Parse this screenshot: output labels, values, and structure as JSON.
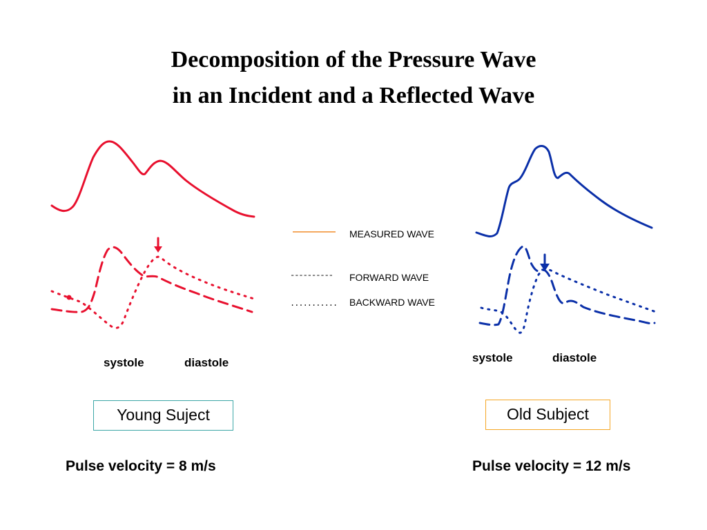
{
  "title": {
    "line1": "Decomposition of the Pressure Wave",
    "line2": "in an Incident and a Reflected Wave"
  },
  "legend": {
    "measured": {
      "sample": "",
      "label": "MEASURED WAVE",
      "color": "#f28c28"
    },
    "forward": {
      "sample": "----------",
      "label": "FORWARD WAVE"
    },
    "backward": {
      "sample": "...........",
      "label": "BACKWARD WAVE"
    }
  },
  "young": {
    "systole": "systole",
    "diastole": "diastole",
    "subject_label": "Young Suject",
    "box_border_color": "#3aa6a6",
    "velocity": "Pulse velocity = 8 m/s",
    "curve_color": "#e8102e"
  },
  "old": {
    "systole": "systole",
    "diastole": "diastole",
    "subject_label": "Old Subject",
    "box_border_color": "#f5a623",
    "velocity": "Pulse velocity = 12 m/s",
    "curve_color": "#0a2fa8"
  }
}
